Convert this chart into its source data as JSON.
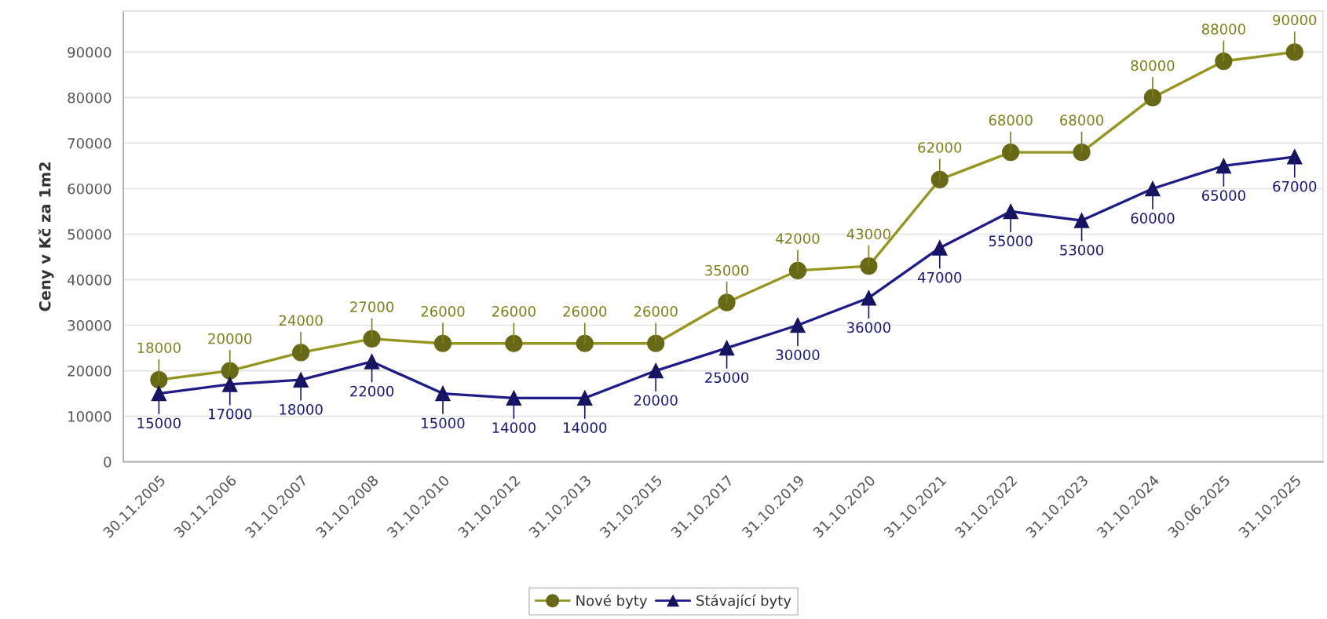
{
  "chart_data": {
    "type": "line",
    "ylabel": "Ceny v Kč za 1m2",
    "categories": [
      "30.11.2005",
      "30.11.2006",
      "31.10.2007",
      "31.10.2008",
      "31.10.2010",
      "31.10.2012",
      "31.10.2013",
      "31.10.2015",
      "31.10.2017",
      "31.10.2019",
      "31.10.2020",
      "31.10.2021",
      "31.10.2022",
      "31.10.2023",
      "31.10.2024",
      "30.06.2025",
      "31.10.2025"
    ],
    "series": [
      {
        "name": "Nové byty",
        "color": "#94961f",
        "marker": "circle",
        "values": [
          18000,
          20000,
          24000,
          27000,
          26000,
          26000,
          26000,
          26000,
          35000,
          42000,
          43000,
          62000,
          68000,
          68000,
          80000,
          88000,
          90000
        ]
      },
      {
        "name": "Stávající byty",
        "color": "#1f1c88",
        "marker": "triangle",
        "values": [
          15000,
          17000,
          18000,
          22000,
          15000,
          14000,
          14000,
          20000,
          25000,
          30000,
          36000,
          47000,
          55000,
          53000,
          60000,
          65000,
          67000
        ]
      }
    ],
    "ylim": [
      0,
      99000
    ],
    "yticks": [
      0,
      10000,
      20000,
      30000,
      40000,
      50000,
      60000,
      70000,
      80000,
      90000
    ],
    "grid": "y",
    "legend": "bottom",
    "data_labels": true
  }
}
